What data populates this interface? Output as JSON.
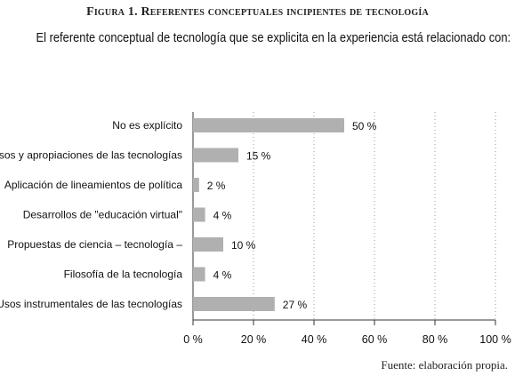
{
  "figure_title": "Figura 1. Referentes conceptuales incipientes de tecnología",
  "subtitle": "El referente conceptual de tecnología que se explicita en la experiencia está relacionado con:",
  "source": "Fuente: elaboración propia.",
  "chart_data": {
    "type": "bar",
    "orientation": "horizontal",
    "categories": [
      "No es explícito",
      "Usos y apropiaciones de las tecnologías",
      "Aplicación de lineamientos de política",
      "Desarrollos de \"educación virtual\"",
      "Propuestas de ciencia – tecnología –",
      "Filosofía de la tecnología",
      "Usos instrumentales de las tecnologías"
    ],
    "values": [
      50,
      15,
      2,
      4,
      10,
      4,
      27
    ],
    "value_labels": [
      "50 %",
      "15 %",
      "2 %",
      "4 %",
      "10 %",
      "4 %",
      "27 %"
    ],
    "xlim": [
      0,
      100
    ],
    "xticks": [
      0,
      20,
      40,
      60,
      80,
      100
    ],
    "xtick_labels": [
      "0 %",
      "20 %",
      "40 %",
      "60 %",
      "80 %",
      "100 %"
    ],
    "bar_color": "#b0b0b0",
    "grid": "vertical dotted"
  }
}
